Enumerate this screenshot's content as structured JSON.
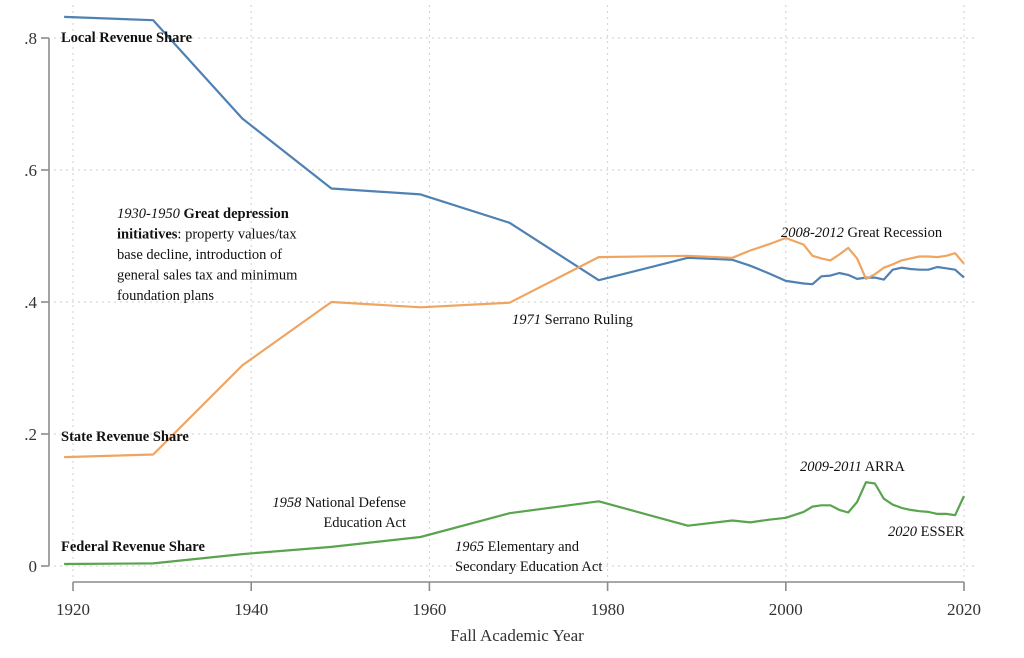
{
  "chart_data": {
    "type": "line",
    "title": "",
    "xlabel": "Fall Academic Year",
    "ylabel": "",
    "xlim": [
      1919,
      2020
    ],
    "ylim": [
      0,
      0.8
    ],
    "x_ticks": [
      1920,
      1940,
      1960,
      1980,
      2000,
      2020
    ],
    "x_tick_labels": [
      "1920",
      "1940",
      "1960",
      "1980",
      "2000",
      "2020"
    ],
    "y_ticks": [
      0,
      0.2,
      0.4,
      0.6,
      0.8
    ],
    "y_tick_labels": [
      "0",
      ".2",
      ".4",
      ".6",
      ".8"
    ],
    "grid": true,
    "legend": "none",
    "series": [
      {
        "name": "Local Revenue Share",
        "label": "Local Revenue Share",
        "color": "#4f81b3",
        "x": [
          1919,
          1929,
          1939,
          1949,
          1959,
          1969,
          1979,
          1989,
          1994,
          1996,
          1998,
          2000,
          2002,
          2003,
          2004,
          2005,
          2006,
          2007,
          2008,
          2009,
          2010,
          2011,
          2012,
          2013,
          2014,
          2015,
          2016,
          2017,
          2018,
          2019,
          2020
        ],
        "values": [
          0.832,
          0.827,
          0.678,
          0.572,
          0.563,
          0.52,
          0.433,
          0.467,
          0.464,
          0.455,
          0.444,
          0.432,
          0.428,
          0.427,
          0.439,
          0.44,
          0.444,
          0.441,
          0.435,
          0.437,
          0.437,
          0.434,
          0.449,
          0.452,
          0.45,
          0.449,
          0.449,
          0.453,
          0.451,
          0.449,
          0.437
        ]
      },
      {
        "name": "State Revenue Share",
        "label": "State Revenue Share",
        "color": "#f0a461",
        "x": [
          1919,
          1929,
          1939,
          1949,
          1959,
          1969,
          1979,
          1989,
          1994,
          1996,
          1998,
          2000,
          2002,
          2003,
          2004,
          2005,
          2006,
          2007,
          2008,
          2009,
          2010,
          2011,
          2012,
          2013,
          2014,
          2015,
          2016,
          2017,
          2018,
          2019,
          2020
        ],
        "values": [
          0.165,
          0.169,
          0.304,
          0.4,
          0.392,
          0.399,
          0.468,
          0.47,
          0.467,
          0.478,
          0.487,
          0.497,
          0.487,
          0.47,
          0.466,
          0.463,
          0.472,
          0.482,
          0.466,
          0.435,
          0.442,
          0.452,
          0.457,
          0.463,
          0.466,
          0.469,
          0.469,
          0.468,
          0.47,
          0.474,
          0.458
        ]
      },
      {
        "name": "Federal Revenue Share",
        "label": "Federal Revenue Share",
        "color": "#5aa34f",
        "x": [
          1919,
          1929,
          1939,
          1949,
          1959,
          1969,
          1979,
          1989,
          1994,
          1996,
          1998,
          2000,
          2002,
          2003,
          2004,
          2005,
          2006,
          2007,
          2008,
          2009,
          2010,
          2011,
          2012,
          2013,
          2014,
          2015,
          2016,
          2017,
          2018,
          2019,
          2020
        ],
        "values": [
          0.003,
          0.004,
          0.018,
          0.029,
          0.044,
          0.08,
          0.098,
          0.061,
          0.069,
          0.066,
          0.07,
          0.073,
          0.082,
          0.09,
          0.092,
          0.092,
          0.085,
          0.081,
          0.097,
          0.127,
          0.125,
          0.102,
          0.093,
          0.088,
          0.085,
          0.083,
          0.082,
          0.079,
          0.079,
          0.077,
          0.106
        ]
      }
    ],
    "annotations": [
      {
        "id": "great-depression",
        "lines": [
          [
            {
              "t": "1930-1950",
              "s": "it"
            },
            {
              "t": " Great depression",
              "s": "b"
            }
          ],
          [
            {
              "t": "initiatives",
              "s": "b"
            },
            {
              "t": ": property values/tax",
              "s": ""
            }
          ],
          [
            {
              "t": "base decline, introduction of",
              "s": ""
            }
          ],
          [
            {
              "t": "general sales tax and minimum",
              "s": ""
            }
          ],
          [
            {
              "t": "foundation plans",
              "s": ""
            }
          ]
        ]
      },
      {
        "id": "serrano",
        "lines": [
          [
            {
              "t": "1971",
              "s": "it"
            },
            {
              "t": " Serrano Ruling",
              "s": ""
            }
          ]
        ]
      },
      {
        "id": "great-recession",
        "lines": [
          [
            {
              "t": "2008-2012",
              "s": "it"
            },
            {
              "t": " Great Recession",
              "s": ""
            }
          ]
        ]
      },
      {
        "id": "ndea",
        "lines": [
          [
            {
              "t": "1958",
              "s": "it"
            },
            {
              "t": " National Defense",
              "s": ""
            }
          ],
          [
            {
              "t": "Education Act",
              "s": ""
            }
          ]
        ]
      },
      {
        "id": "esea",
        "lines": [
          [
            {
              "t": "1965",
              "s": "it"
            },
            {
              "t": " Elementary and",
              "s": ""
            }
          ],
          [
            {
              "t": "Secondary Education Act",
              "s": ""
            }
          ]
        ]
      },
      {
        "id": "arra",
        "lines": [
          [
            {
              "t": "2009-2011",
              "s": "it"
            },
            {
              "t": " ARRA",
              "s": ""
            }
          ]
        ]
      },
      {
        "id": "esser",
        "lines": [
          [
            {
              "t": "2020",
              "s": "it"
            },
            {
              "t": " ESSER",
              "s": ""
            }
          ]
        ]
      }
    ]
  }
}
